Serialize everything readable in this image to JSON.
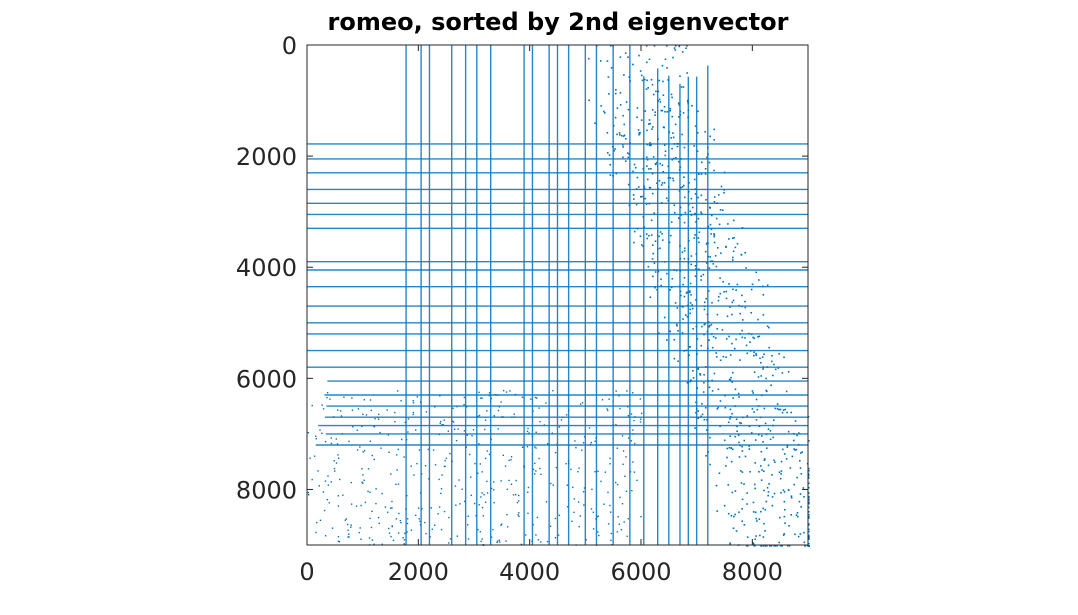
{
  "chart_data": {
    "type": "scatter",
    "title": "romeo, sorted by 2nd eigenvector",
    "xlabel": "",
    "ylabel": "",
    "xlim": [
      0,
      9000
    ],
    "ylim": [
      0,
      9000
    ],
    "y_reversed": true,
    "xticks": [
      0,
      2000,
      4000,
      6000,
      8000
    ],
    "yticks": [
      0,
      2000,
      4000,
      6000,
      8000
    ],
    "xtick_labels": [
      "0",
      "2000",
      "4000",
      "6000",
      "8000"
    ],
    "ytick_labels": [
      "0",
      "2000",
      "4000",
      "6000",
      "8000"
    ],
    "marker_color": "#0072bd",
    "grid": false,
    "legend": "none",
    "dense_columns_x": [
      1780,
      2050,
      2200,
      2600,
      2850,
      3050,
      3300,
      3900,
      4050,
      4350,
      4500,
      4700,
      5000,
      5200,
      5500,
      5800,
      6050,
      6300,
      6500,
      6700,
      6850,
      7000,
      7200
    ],
    "dense_rows_y": [
      1780,
      2050,
      2300,
      2600,
      2850,
      3050,
      3300,
      3900,
      4050,
      4350,
      4700,
      5000,
      5200,
      5500,
      5800,
      6050,
      6300,
      6500,
      6700,
      6850,
      7000,
      7200
    ],
    "diagonal_band": {
      "from": [
        6000,
        0
      ],
      "to": [
        9000,
        9000
      ],
      "note": "dense cloud near bottom-right"
    }
  }
}
